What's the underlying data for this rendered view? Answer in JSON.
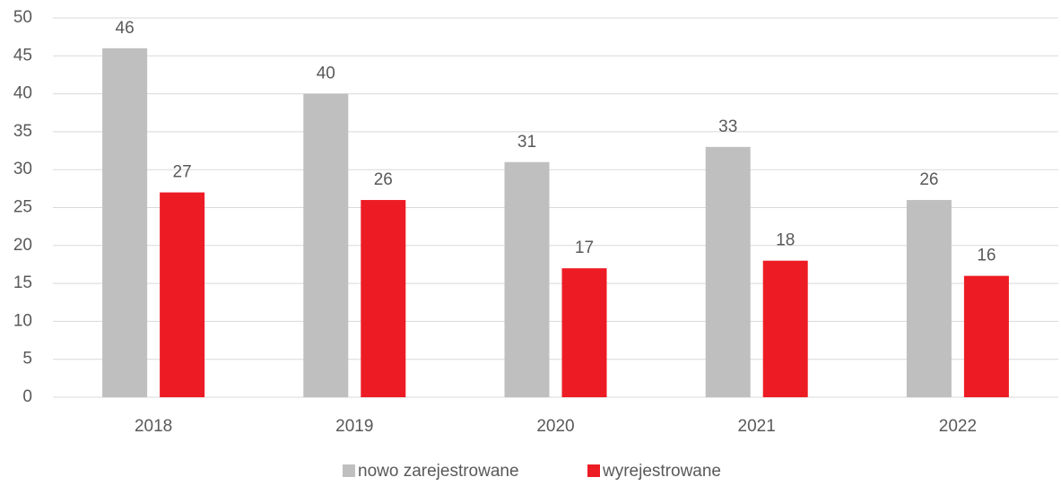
{
  "chart_data": {
    "type": "bar",
    "categories": [
      "2018",
      "2019",
      "2020",
      "2021",
      "2022"
    ],
    "series": [
      {
        "name": "nowo zarejestrowane",
        "color": "#bfbfbf",
        "values": [
          46,
          40,
          31,
          33,
          26
        ]
      },
      {
        "name": "wyrejestrowane",
        "color": "#ed1c24",
        "values": [
          27,
          26,
          17,
          18,
          16
        ]
      }
    ],
    "ylim": [
      0,
      50
    ],
    "yticks": [
      0,
      5,
      10,
      15,
      20,
      25,
      30,
      35,
      40,
      45,
      50
    ],
    "grid": true,
    "legend": "bottom",
    "data_labels": true
  }
}
